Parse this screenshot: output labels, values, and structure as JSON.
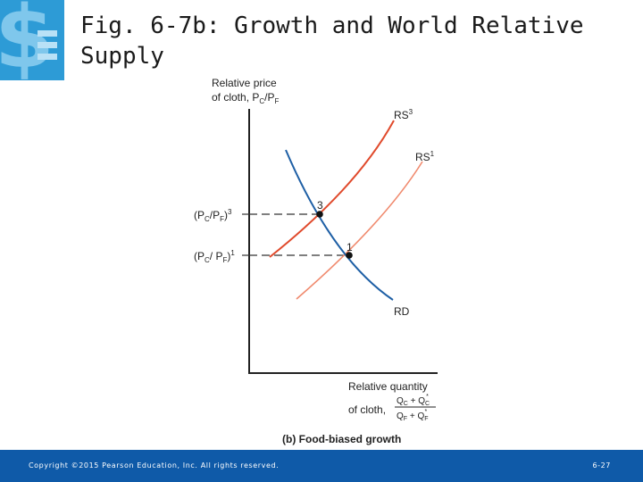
{
  "slide": {
    "title": "Fig. 6-7b: Growth and World Relative Supply",
    "footer_copyright": "Copyright ©2015 Pearson Education, Inc. All rights reserved.",
    "page_number": "6-27"
  },
  "figure": {
    "ylabel_line1": "Relative price",
    "ylabel_line2": "of cloth, P",
    "ylabel_sub_c": "C",
    "ylabel_slash": "/P",
    "ylabel_sub_f": "F",
    "xlabel_line1": "Relative quantity",
    "xlabel_line2": "of cloth,",
    "caption": "(b) Food-biased growth",
    "curves": {
      "rs3": "RS",
      "rs3_sup": "3",
      "rs1": "RS",
      "rs1_sup": "1",
      "rd": "RD"
    },
    "points": {
      "p3": "3",
      "p1": "1"
    },
    "ticks": {
      "price3_sup": "3",
      "price1_sup": "1"
    },
    "colors": {
      "rs3": "#e04a2c",
      "rs1": "#f08a6e",
      "rd": "#1e5fa5",
      "axis": "#222222"
    }
  }
}
